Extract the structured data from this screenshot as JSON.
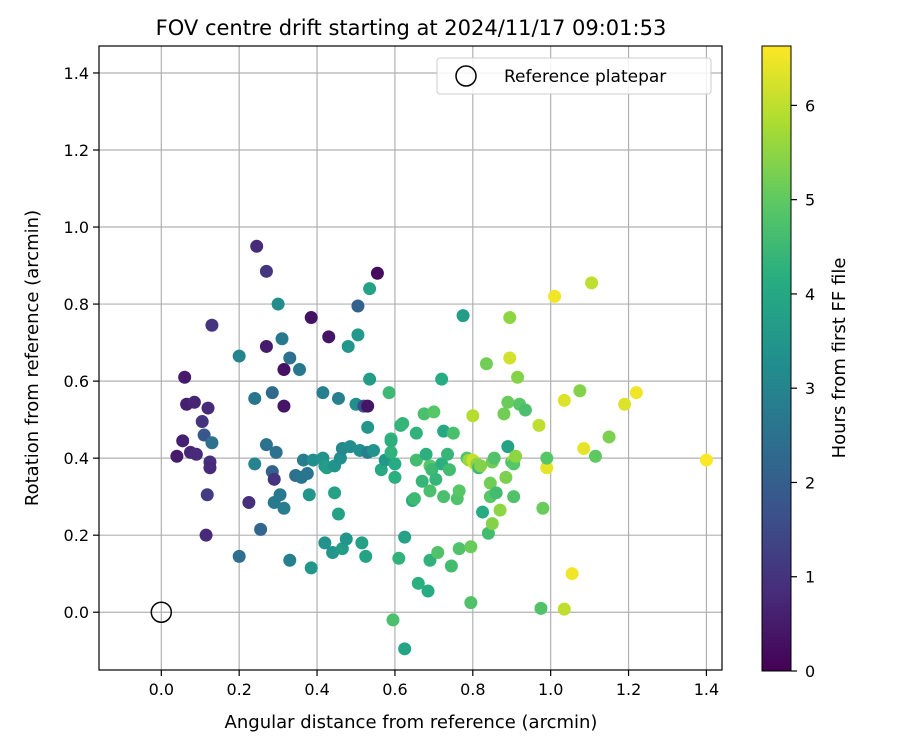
{
  "chart_data": {
    "type": "scatter",
    "title": "FOV centre drift starting at 2024/11/17 09:01:53",
    "xlabel": "Angular distance from reference (arcmin)",
    "ylabel": "Rotation from reference (arcmin)",
    "xlim": [
      -0.16,
      1.44
    ],
    "ylim": [
      -0.15,
      1.47
    ],
    "x_ticks": [
      "0.0",
      "0.2",
      "0.4",
      "0.6",
      "0.8",
      "1.0",
      "1.2",
      "1.4"
    ],
    "y_ticks": [
      "0.0",
      "0.2",
      "0.4",
      "0.6",
      "0.8",
      "1.0",
      "1.2",
      "1.4"
    ],
    "grid": true,
    "colormap": "viridis",
    "colorbar": {
      "label": "Hours from first FF file",
      "range": [
        0,
        6.63
      ],
      "ticks": [
        "0",
        "1",
        "2",
        "3",
        "4",
        "5",
        "6"
      ]
    },
    "legend": {
      "position": "top-right",
      "label": "Reference platepar"
    },
    "reference_point": {
      "x": 0.0,
      "y": 0.0
    },
    "points": [
      {
        "x": 0.04,
        "y": 0.405,
        "h": 0.5
      },
      {
        "x": 0.055,
        "y": 0.445,
        "h": 0.6
      },
      {
        "x": 0.06,
        "y": 0.61,
        "h": 0.5
      },
      {
        "x": 0.065,
        "y": 0.54,
        "h": 0.6
      },
      {
        "x": 0.075,
        "y": 0.415,
        "h": 0.7
      },
      {
        "x": 0.085,
        "y": 0.545,
        "h": 0.7
      },
      {
        "x": 0.09,
        "y": 0.41,
        "h": 0.8
      },
      {
        "x": 0.105,
        "y": 0.495,
        "h": 1.0
      },
      {
        "x": 0.11,
        "y": 0.46,
        "h": 1.8
      },
      {
        "x": 0.115,
        "y": 0.2,
        "h": 0.8
      },
      {
        "x": 0.118,
        "y": 0.305,
        "h": 1.2
      },
      {
        "x": 0.12,
        "y": 0.53,
        "h": 0.8
      },
      {
        "x": 0.125,
        "y": 0.39,
        "h": 0.9
      },
      {
        "x": 0.125,
        "y": 0.375,
        "h": 0.8
      },
      {
        "x": 0.13,
        "y": 0.745,
        "h": 1.0
      },
      {
        "x": 0.13,
        "y": 0.44,
        "h": 2.5
      },
      {
        "x": 0.2,
        "y": 0.145,
        "h": 2.4
      },
      {
        "x": 0.2,
        "y": 0.665,
        "h": 3.0
      },
      {
        "x": 0.225,
        "y": 0.285,
        "h": 0.9
      },
      {
        "x": 0.24,
        "y": 0.555,
        "h": 2.6
      },
      {
        "x": 0.24,
        "y": 0.385,
        "h": 3.0
      },
      {
        "x": 0.245,
        "y": 0.95,
        "h": 0.8
      },
      {
        "x": 0.255,
        "y": 0.215,
        "h": 2.2
      },
      {
        "x": 0.27,
        "y": 0.435,
        "h": 2.5
      },
      {
        "x": 0.27,
        "y": 0.69,
        "h": 0.5
      },
      {
        "x": 0.27,
        "y": 0.885,
        "h": 1.0
      },
      {
        "x": 0.285,
        "y": 0.57,
        "h": 2.3
      },
      {
        "x": 0.285,
        "y": 0.365,
        "h": 2.1
      },
      {
        "x": 0.29,
        "y": 0.285,
        "h": 2.7
      },
      {
        "x": 0.29,
        "y": 0.345,
        "h": 1.0
      },
      {
        "x": 0.295,
        "y": 0.415,
        "h": 2.5
      },
      {
        "x": 0.3,
        "y": 0.8,
        "h": 3.2
      },
      {
        "x": 0.305,
        "y": 0.305,
        "h": 2.7
      },
      {
        "x": 0.31,
        "y": 0.71,
        "h": 2.7
      },
      {
        "x": 0.315,
        "y": 0.63,
        "h": 0.3
      },
      {
        "x": 0.315,
        "y": 0.535,
        "h": 0.4
      },
      {
        "x": 0.315,
        "y": 0.27,
        "h": 2.8
      },
      {
        "x": 0.33,
        "y": 0.66,
        "h": 2.5
      },
      {
        "x": 0.33,
        "y": 0.135,
        "h": 2.9
      },
      {
        "x": 0.345,
        "y": 0.355,
        "h": 2.4
      },
      {
        "x": 0.355,
        "y": 0.63,
        "h": 2.7
      },
      {
        "x": 0.36,
        "y": 0.35,
        "h": 2.6
      },
      {
        "x": 0.365,
        "y": 0.395,
        "h": 2.8
      },
      {
        "x": 0.375,
        "y": 0.36,
        "h": 2.6
      },
      {
        "x": 0.38,
        "y": 0.305,
        "h": 3.5
      },
      {
        "x": 0.385,
        "y": 0.765,
        "h": 0.3
      },
      {
        "x": 0.385,
        "y": 0.115,
        "h": 3.5
      },
      {
        "x": 0.39,
        "y": 0.395,
        "h": 3.3
      },
      {
        "x": 0.415,
        "y": 0.57,
        "h": 2.9
      },
      {
        "x": 0.415,
        "y": 0.4,
        "h": 3.4
      },
      {
        "x": 0.42,
        "y": 0.38,
        "h": 3.6
      },
      {
        "x": 0.42,
        "y": 0.18,
        "h": 3.4
      },
      {
        "x": 0.425,
        "y": 0.375,
        "h": 3.7
      },
      {
        "x": 0.43,
        "y": 0.715,
        "h": 0.4
      },
      {
        "x": 0.44,
        "y": 0.155,
        "h": 3.5
      },
      {
        "x": 0.445,
        "y": 0.31,
        "h": 3.8
      },
      {
        "x": 0.445,
        "y": 0.38,
        "h": 3.4
      },
      {
        "x": 0.455,
        "y": 0.555,
        "h": 2.9
      },
      {
        "x": 0.455,
        "y": 0.255,
        "h": 3.8
      },
      {
        "x": 0.46,
        "y": 0.4,
        "h": 3.3
      },
      {
        "x": 0.465,
        "y": 0.165,
        "h": 3.7
      },
      {
        "x": 0.465,
        "y": 0.425,
        "h": 3.1
      },
      {
        "x": 0.475,
        "y": 0.19,
        "h": 3.5
      },
      {
        "x": 0.48,
        "y": 0.69,
        "h": 3.5
      },
      {
        "x": 0.485,
        "y": 0.43,
        "h": 3.2
      },
      {
        "x": 0.5,
        "y": 0.54,
        "h": 3.3
      },
      {
        "x": 0.505,
        "y": 0.795,
        "h": 2.1
      },
      {
        "x": 0.505,
        "y": 0.72,
        "h": 3.6
      },
      {
        "x": 0.51,
        "y": 0.42,
        "h": 3.3
      },
      {
        "x": 0.515,
        "y": 0.18,
        "h": 3.8
      },
      {
        "x": 0.52,
        "y": 0.535,
        "h": 1.6
      },
      {
        "x": 0.525,
        "y": 0.145,
        "h": 3.9
      },
      {
        "x": 0.53,
        "y": 0.535,
        "h": 0.4
      },
      {
        "x": 0.53,
        "y": 0.415,
        "h": 2.9
      },
      {
        "x": 0.53,
        "y": 0.48,
        "h": 3.5
      },
      {
        "x": 0.535,
        "y": 0.605,
        "h": 3.7
      },
      {
        "x": 0.535,
        "y": 0.84,
        "h": 3.8
      },
      {
        "x": 0.545,
        "y": 0.42,
        "h": 3.4
      },
      {
        "x": 0.555,
        "y": 0.88,
        "h": 0.2
      },
      {
        "x": 0.565,
        "y": 0.37,
        "h": 4.0
      },
      {
        "x": 0.575,
        "y": 0.395,
        "h": 3.6
      },
      {
        "x": 0.585,
        "y": 0.57,
        "h": 4.5
      },
      {
        "x": 0.59,
        "y": 0.415,
        "h": 4.3
      },
      {
        "x": 0.59,
        "y": 0.45,
        "h": 4.4
      },
      {
        "x": 0.59,
        "y": 0.445,
        "h": 4.2
      },
      {
        "x": 0.595,
        "y": -0.02,
        "h": 4.7
      },
      {
        "x": 0.6,
        "y": 0.35,
        "h": 4.2
      },
      {
        "x": 0.6,
        "y": 0.385,
        "h": 4.1
      },
      {
        "x": 0.61,
        "y": 0.14,
        "h": 4.3
      },
      {
        "x": 0.615,
        "y": 0.485,
        "h": 4.3
      },
      {
        "x": 0.62,
        "y": 0.49,
        "h": 4.4
      },
      {
        "x": 0.625,
        "y": -0.095,
        "h": 3.9
      },
      {
        "x": 0.625,
        "y": 0.195,
        "h": 3.8
      },
      {
        "x": 0.645,
        "y": 0.29,
        "h": 4.1
      },
      {
        "x": 0.65,
        "y": 0.295,
        "h": 4.5
      },
      {
        "x": 0.655,
        "y": 0.465,
        "h": 4.3
      },
      {
        "x": 0.655,
        "y": 0.395,
        "h": 4.6
      },
      {
        "x": 0.66,
        "y": 0.075,
        "h": 4.2
      },
      {
        "x": 0.67,
        "y": 0.34,
        "h": 4.4
      },
      {
        "x": 0.675,
        "y": 0.515,
        "h": 4.7
      },
      {
        "x": 0.68,
        "y": 0.41,
        "h": 4.2
      },
      {
        "x": 0.685,
        "y": 0.055,
        "h": 4.1
      },
      {
        "x": 0.69,
        "y": 0.38,
        "h": 4.9
      },
      {
        "x": 0.69,
        "y": 0.315,
        "h": 4.7
      },
      {
        "x": 0.69,
        "y": 0.135,
        "h": 4.3
      },
      {
        "x": 0.695,
        "y": 0.37,
        "h": 4.5
      },
      {
        "x": 0.7,
        "y": 0.52,
        "h": 4.9
      },
      {
        "x": 0.705,
        "y": 0.345,
        "h": 4.4
      },
      {
        "x": 0.71,
        "y": 0.155,
        "h": 4.8
      },
      {
        "x": 0.72,
        "y": 0.605,
        "h": 4.1
      },
      {
        "x": 0.72,
        "y": 0.385,
        "h": 4.2
      },
      {
        "x": 0.725,
        "y": 0.47,
        "h": 4.0
      },
      {
        "x": 0.725,
        "y": 0.3,
        "h": 4.7
      },
      {
        "x": 0.735,
        "y": 0.41,
        "h": 4.4
      },
      {
        "x": 0.74,
        "y": 0.37,
        "h": 4.6
      },
      {
        "x": 0.745,
        "y": 0.12,
        "h": 4.6
      },
      {
        "x": 0.75,
        "y": 0.465,
        "h": 4.7
      },
      {
        "x": 0.76,
        "y": 0.295,
        "h": 4.8
      },
      {
        "x": 0.765,
        "y": 0.315,
        "h": 4.9
      },
      {
        "x": 0.765,
        "y": 0.165,
        "h": 4.8
      },
      {
        "x": 0.775,
        "y": 0.77,
        "h": 3.7
      },
      {
        "x": 0.785,
        "y": 0.4,
        "h": 4.8
      },
      {
        "x": 0.79,
        "y": 0.395,
        "h": 5.6
      },
      {
        "x": 0.795,
        "y": 0.17,
        "h": 5.1
      },
      {
        "x": 0.795,
        "y": 0.025,
        "h": 4.8
      },
      {
        "x": 0.8,
        "y": 0.51,
        "h": 5.9
      },
      {
        "x": 0.8,
        "y": 0.395,
        "h": 6.1
      },
      {
        "x": 0.805,
        "y": 0.385,
        "h": 6.2
      },
      {
        "x": 0.81,
        "y": 0.385,
        "h": 5.5
      },
      {
        "x": 0.815,
        "y": 0.375,
        "h": 4.5
      },
      {
        "x": 0.82,
        "y": 0.38,
        "h": 5.4
      },
      {
        "x": 0.825,
        "y": 0.26,
        "h": 4.1
      },
      {
        "x": 0.835,
        "y": 0.645,
        "h": 5.2
      },
      {
        "x": 0.84,
        "y": 0.205,
        "h": 4.6
      },
      {
        "x": 0.845,
        "y": 0.3,
        "h": 4.9
      },
      {
        "x": 0.845,
        "y": 0.335,
        "h": 5.2
      },
      {
        "x": 0.85,
        "y": 0.39,
        "h": 5.2
      },
      {
        "x": 0.85,
        "y": 0.23,
        "h": 5.4
      },
      {
        "x": 0.855,
        "y": 0.4,
        "h": 4.8
      },
      {
        "x": 0.86,
        "y": 0.31,
        "h": 4.6
      },
      {
        "x": 0.87,
        "y": 0.265,
        "h": 5.5
      },
      {
        "x": 0.88,
        "y": 0.515,
        "h": 5.2
      },
      {
        "x": 0.885,
        "y": 0.35,
        "h": 5.3
      },
      {
        "x": 0.89,
        "y": 0.43,
        "h": 3.8
      },
      {
        "x": 0.89,
        "y": 0.545,
        "h": 5.1
      },
      {
        "x": 0.895,
        "y": 0.66,
        "h": 6.2
      },
      {
        "x": 0.895,
        "y": 0.765,
        "h": 5.5
      },
      {
        "x": 0.9,
        "y": 0.39,
        "h": 4.7
      },
      {
        "x": 0.905,
        "y": 0.395,
        "h": 5.8
      },
      {
        "x": 0.905,
        "y": 0.385,
        "h": 4.9
      },
      {
        "x": 0.905,
        "y": 0.3,
        "h": 4.8
      },
      {
        "x": 0.91,
        "y": 0.405,
        "h": 5.5
      },
      {
        "x": 0.915,
        "y": 0.61,
        "h": 5.4
      },
      {
        "x": 0.92,
        "y": 0.54,
        "h": 4.9
      },
      {
        "x": 0.935,
        "y": 0.525,
        "h": 4.7
      },
      {
        "x": 0.97,
        "y": 0.485,
        "h": 6.0
      },
      {
        "x": 0.975,
        "y": 0.01,
        "h": 4.8
      },
      {
        "x": 0.98,
        "y": 0.27,
        "h": 5.1
      },
      {
        "x": 0.99,
        "y": 0.375,
        "h": 6.4
      },
      {
        "x": 0.99,
        "y": 0.4,
        "h": 4.9
      },
      {
        "x": 1.01,
        "y": 0.82,
        "h": 6.5
      },
      {
        "x": 1.035,
        "y": 0.55,
        "h": 6.3
      },
      {
        "x": 1.035,
        "y": 0.008,
        "h": 6.0
      },
      {
        "x": 1.055,
        "y": 0.1,
        "h": 6.5
      },
      {
        "x": 1.075,
        "y": 0.575,
        "h": 5.4
      },
      {
        "x": 1.085,
        "y": 0.425,
        "h": 6.4
      },
      {
        "x": 1.105,
        "y": 0.855,
        "h": 6.0
      },
      {
        "x": 1.115,
        "y": 0.405,
        "h": 5.0
      },
      {
        "x": 1.15,
        "y": 0.455,
        "h": 5.3
      },
      {
        "x": 1.19,
        "y": 0.54,
        "h": 6.3
      },
      {
        "x": 1.22,
        "y": 0.57,
        "h": 6.5
      },
      {
        "x": 1.4,
        "y": 0.395,
        "h": 6.6
      }
    ]
  }
}
